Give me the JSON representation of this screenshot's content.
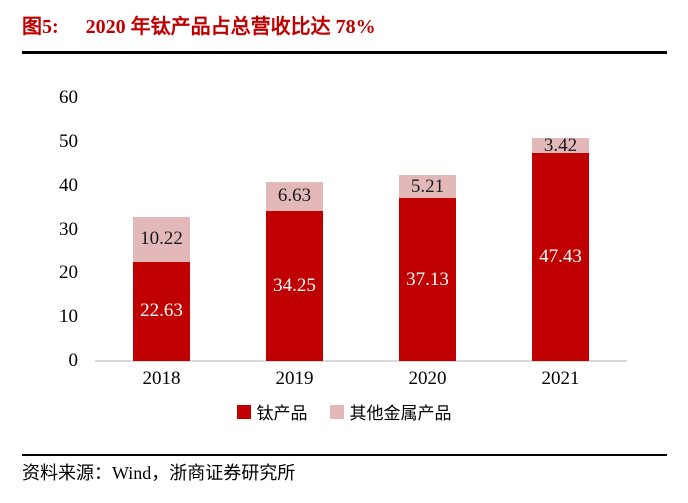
{
  "figure": {
    "label": "图5:",
    "title": "2020 年钛产品占总营收比达 78%"
  },
  "source": "资料来源：Wind，浙商证券研究所",
  "colors": {
    "title_red": "#c00000",
    "bar_red": "#c00000",
    "bar_pink": "#e3b8b9",
    "axis_line": "#d9d9d9",
    "label_on_red": "#ffffff",
    "label_on_pink": "#1a1a1a"
  },
  "chart_data": {
    "type": "bar",
    "stacked": true,
    "title": "2020 年钛产品占总营收比达 78%",
    "categories": [
      "2018",
      "2019",
      "2020",
      "2021"
    ],
    "series": [
      {
        "name": "钛产品",
        "key": "titanium-products",
        "color": "#c00000",
        "label_color": "#ffffff",
        "values": [
          22.63,
          34.25,
          37.13,
          47.43
        ]
      },
      {
        "name": "其他金属产品",
        "key": "other-metal-products",
        "color": "#e3b8b9",
        "label_color": "#1a1a1a",
        "values": [
          10.22,
          6.63,
          5.21,
          3.42
        ]
      }
    ],
    "xlabel": "",
    "ylabel": "",
    "ylim": [
      0,
      60
    ],
    "yticks": [
      0,
      10,
      20,
      30,
      40,
      50,
      60
    ],
    "grid": false,
    "data_labels": true,
    "legend_position": "bottom"
  }
}
